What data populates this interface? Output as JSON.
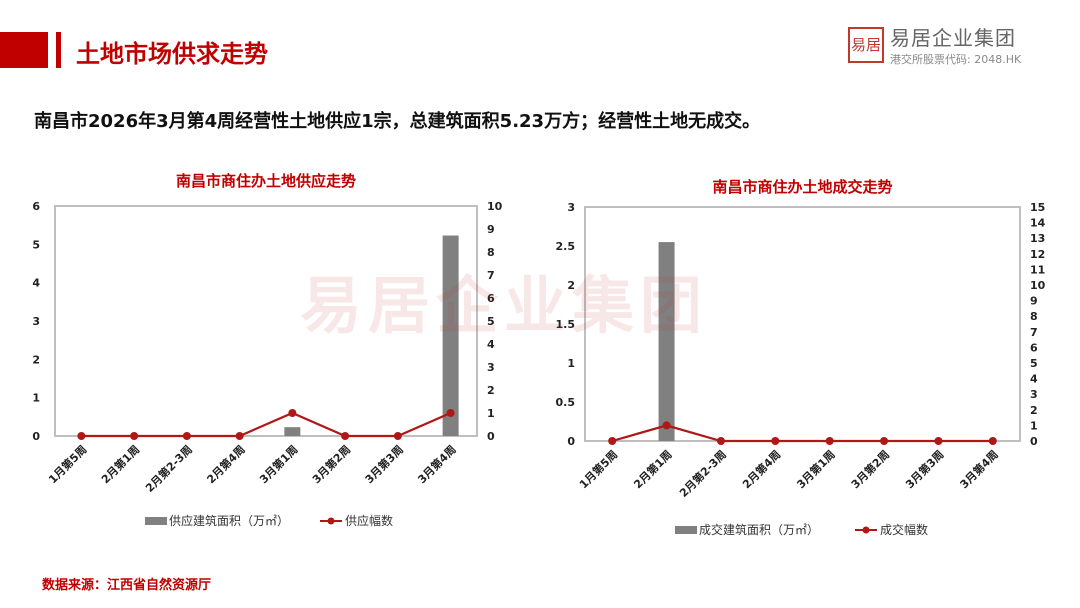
{
  "header": {
    "title": "土地市场供求走势",
    "logo_seal": "易居",
    "logo_name": "易居企业集团",
    "logo_code": "港交所股票代码: 2048.HK"
  },
  "summary": "南昌市2026年3月第4周经营性土地供应1宗，总建筑面积5.23万方；经营性土地无成交。",
  "watermark": "易居企业集团",
  "source": "数据来源：江西省自然资源厅",
  "colors": {
    "accent": "#c00000",
    "bar": "#808080",
    "line": "#b01818"
  },
  "chart_data": [
    {
      "type": "bar+line",
      "title": "南昌市商住办土地供应走势",
      "categories": [
        "1月第5周",
        "2月第1周",
        "2月第2-3周",
        "2月第4周",
        "3月第1周",
        "3月第2周",
        "3月第3周",
        "3月第4周"
      ],
      "series": [
        {
          "name": "供应建筑面积（万㎡）",
          "type": "bar",
          "axis": "left",
          "values": [
            0,
            0,
            0,
            0,
            0.23,
            0,
            0,
            5.23
          ]
        },
        {
          "name": "供应幅数",
          "type": "line",
          "axis": "right",
          "values": [
            0,
            0,
            0,
            0,
            1,
            0,
            0,
            1
          ]
        }
      ],
      "ylim_left": [
        0,
        6
      ],
      "yticks_left": [
        "0",
        "1",
        "2",
        "3",
        "4",
        "5",
        "6"
      ],
      "ylim_right": [
        0,
        10
      ],
      "yticks_right": [
        "0",
        "1",
        "2",
        "3",
        "4",
        "5",
        "6",
        "7",
        "8",
        "9",
        "10"
      ],
      "legend": "bottom",
      "grid": false
    },
    {
      "type": "bar+line",
      "title": "南昌市商住办土地成交走势",
      "categories": [
        "1月第5周",
        "2月第1周",
        "2月第2-3周",
        "2月第4周",
        "3月第1周",
        "3月第2周",
        "3月第3周",
        "3月第4周"
      ],
      "series": [
        {
          "name": "成交建筑面积（万㎡）",
          "type": "bar",
          "axis": "left",
          "values": [
            0,
            2.55,
            0,
            0,
            0,
            0,
            0,
            0
          ]
        },
        {
          "name": "成交幅数",
          "type": "line",
          "axis": "right",
          "values": [
            0,
            1,
            0,
            0,
            0,
            0,
            0,
            0
          ]
        }
      ],
      "ylim_left": [
        0,
        3
      ],
      "yticks_left": [
        "0",
        "0.5",
        "1",
        "1.5",
        "2",
        "2.5",
        "3"
      ],
      "ylim_right": [
        0,
        15
      ],
      "yticks_right": [
        "0",
        "1",
        "2",
        "3",
        "4",
        "5",
        "6",
        "7",
        "8",
        "9",
        "10",
        "11",
        "12",
        "13",
        "14",
        "15"
      ],
      "legend": "bottom",
      "grid": false
    }
  ]
}
